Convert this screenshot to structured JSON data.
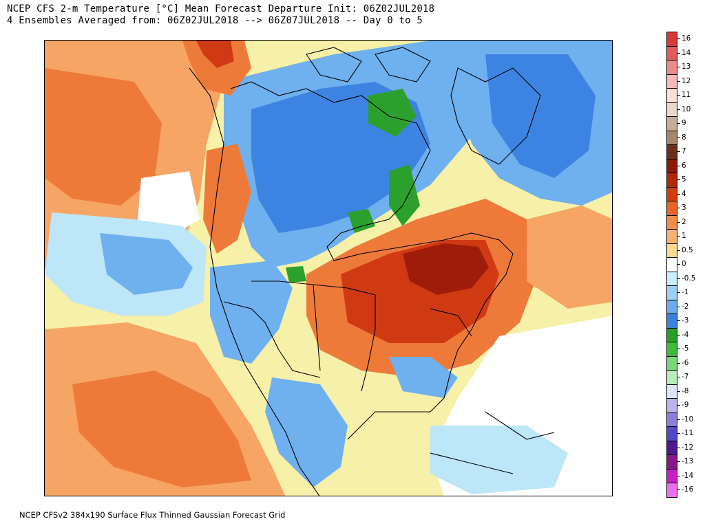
{
  "header": {
    "line1": "NCEP CFS 2-m Temperature [°C] Mean Forecast Departure Init: 06Z02JUL2018",
    "line2": "4 Ensembles Averaged from: 06Z02JUL2018 --> 06Z07JUL2018 -- Day 0 to 5"
  },
  "footer": {
    "text": "NCEP CFSv2 384x190 Surface Flux Thinned Gaussian Forecast Grid"
  },
  "colorbar": {
    "labels": [
      "16",
      "14",
      "13",
      "12",
      "11",
      "10",
      "9",
      "8",
      "7",
      "6",
      "5",
      "4",
      "3",
      "2",
      "1",
      "0.5",
      "0",
      "-0.5",
      "-1",
      "-2",
      "-3",
      "-4",
      "-5",
      "-6",
      "-7",
      "-8",
      "-9",
      "-10",
      "-11",
      "-12",
      "-13",
      "-14",
      "-16"
    ],
    "colors": [
      "#d83838",
      "#e45a5a",
      "#ee8a8a",
      "#f6b8b8",
      "#fbe0d8",
      "#ead8cc",
      "#c8ac98",
      "#a8866c",
      "#6c3018",
      "#8e1808",
      "#b02808",
      "#d43c10",
      "#ea6428",
      "#f48c4c",
      "#f9b070",
      "#fcd890",
      "#ffffff",
      "#c8eefa",
      "#9cd0f4",
      "#6cacec",
      "#3a82e0",
      "#28a028",
      "#3cbc3c",
      "#78d878",
      "#b8ecb8",
      "#dce4f8",
      "#bcb4ec",
      "#8a80dc",
      "#5048c4",
      "#501890",
      "#8a168a",
      "#c81ec8",
      "#ee6cee"
    ]
  },
  "map": {
    "field": "2-m temperature departure",
    "colors": {
      "red_dark": "#a01c0a",
      "red": "#d03a12",
      "orange": "#ee7a3a",
      "orange_light": "#f6a564",
      "yellow": "#f9d98e",
      "white": "#ffffff",
      "blue_light": "#bde6f8",
      "blue": "#6fb0ee",
      "blue_mid": "#3d84e2",
      "blue_dark": "#2a6ad2",
      "green": "#2ca02c"
    }
  }
}
